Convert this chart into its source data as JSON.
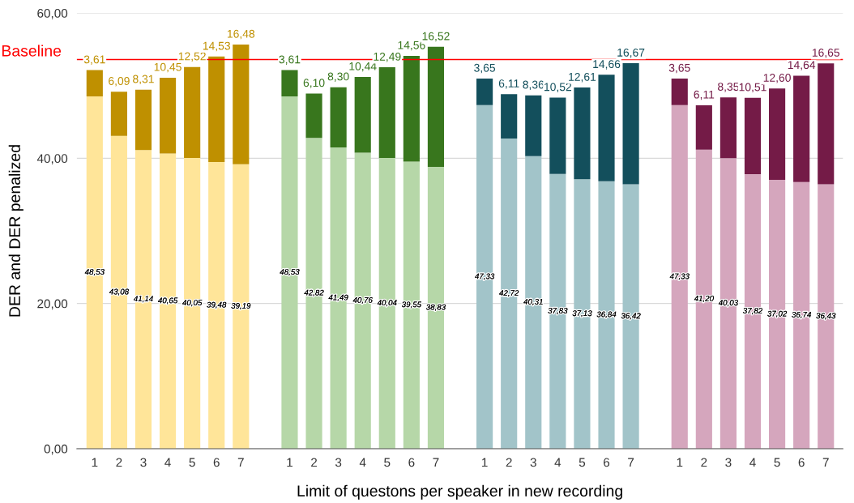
{
  "chart_data": {
    "type": "bar",
    "stacked": true,
    "xlabel": "Limit of questons per speaker in new recording",
    "ylabel": "DER and DER penalized",
    "categories": [
      "1",
      "2",
      "3",
      "4",
      "5",
      "6",
      "7",
      null,
      "1",
      "2",
      "3",
      "4",
      "5",
      "6",
      "7",
      null,
      "1",
      "2",
      "3",
      "4",
      "5",
      "6",
      "7",
      null,
      "1",
      "2",
      "3",
      "4",
      "5",
      "6",
      "7"
    ],
    "series": [
      {
        "color": "#ffe599",
        "values": [
          48.53,
          43.08,
          41.14,
          40.65,
          40.05,
          39.48,
          39.19,
          null,
          null,
          null,
          null,
          null,
          null,
          null,
          null,
          null,
          null,
          null,
          null,
          null,
          null,
          null,
          null,
          null,
          null,
          null,
          null,
          null,
          null,
          null,
          null
        ],
        "value_labels": [
          "48,53",
          "43,08",
          "41,14",
          "40,65",
          "40,05",
          "39,48",
          "39,19",
          null,
          null,
          null,
          null,
          null,
          null,
          null,
          null,
          null,
          null,
          null,
          null,
          null,
          null,
          null,
          null,
          null,
          null,
          null,
          null,
          null,
          null,
          null,
          null
        ]
      },
      {
        "color": "#b6d7a8",
        "values": [
          null,
          null,
          null,
          null,
          null,
          null,
          null,
          null,
          48.53,
          42.82,
          41.49,
          40.76,
          40.04,
          39.55,
          38.83,
          null,
          null,
          null,
          null,
          null,
          null,
          null,
          null,
          null,
          null,
          null,
          null,
          null,
          null,
          null,
          null
        ],
        "value_labels": [
          null,
          null,
          null,
          null,
          null,
          null,
          null,
          null,
          "48,53",
          "42,82",
          "41,49",
          "40,76",
          "40,04",
          "39,55",
          "38,83",
          null,
          null,
          null,
          null,
          null,
          null,
          null,
          null,
          null,
          null,
          null,
          null,
          null,
          null,
          null,
          null
        ]
      },
      {
        "color": "#a2c4c9",
        "values": [
          null,
          null,
          null,
          null,
          null,
          null,
          null,
          null,
          null,
          null,
          null,
          null,
          null,
          null,
          null,
          null,
          47.33,
          42.72,
          40.31,
          37.83,
          37.13,
          36.84,
          36.42,
          null,
          null,
          null,
          null,
          null,
          null,
          null,
          null
        ],
        "value_labels": [
          null,
          null,
          null,
          null,
          null,
          null,
          null,
          null,
          null,
          null,
          null,
          null,
          null,
          null,
          null,
          null,
          "47,33",
          "42,72",
          "40,31",
          "37,83",
          "37,13",
          "36,84",
          "36,42",
          null,
          null,
          null,
          null,
          null,
          null,
          null,
          null
        ]
      },
      {
        "color": "#d5a6bd",
        "values": [
          null,
          null,
          null,
          null,
          null,
          null,
          null,
          null,
          null,
          null,
          null,
          null,
          null,
          null,
          null,
          null,
          null,
          null,
          null,
          null,
          null,
          null,
          null,
          null,
          47.33,
          41.2,
          40.03,
          37.82,
          37.02,
          36.74,
          36.43
        ],
        "value_labels": [
          null,
          null,
          null,
          null,
          null,
          null,
          null,
          null,
          null,
          null,
          null,
          null,
          null,
          null,
          null,
          null,
          null,
          null,
          null,
          null,
          null,
          null,
          null,
          null,
          "47,33",
          "41,20",
          "40,03",
          "37,82",
          "37,02",
          "36,74",
          "36,43"
        ]
      },
      {
        "color": "#bf9000",
        "values": [
          3.61,
          6.09,
          8.31,
          10.45,
          12.52,
          14.53,
          16.48,
          null,
          null,
          null,
          null,
          null,
          null,
          null,
          null,
          null,
          null,
          null,
          null,
          null,
          null,
          null,
          null,
          null,
          null,
          null,
          null,
          null,
          null,
          null,
          null
        ],
        "value_labels": [
          "3,61",
          "6,09",
          "8,31",
          "10,45",
          "12,52",
          "14,53",
          "16,48",
          null,
          null,
          null,
          null,
          null,
          null,
          null,
          null,
          null,
          null,
          null,
          null,
          null,
          null,
          null,
          null,
          null,
          null,
          null,
          null,
          null,
          null,
          null,
          null
        ]
      },
      {
        "color": "#38761d",
        "values": [
          null,
          null,
          null,
          null,
          null,
          null,
          null,
          null,
          3.61,
          6.1,
          8.3,
          10.44,
          12.49,
          14.56,
          16.52,
          null,
          null,
          null,
          null,
          null,
          null,
          null,
          null,
          null,
          null,
          null,
          null,
          null,
          null,
          null,
          null
        ],
        "value_labels": [
          null,
          null,
          null,
          null,
          null,
          null,
          null,
          null,
          "3,61",
          "6,10",
          "8,30",
          "10,44",
          "12,49",
          "14,56",
          "16,52",
          null,
          null,
          null,
          null,
          null,
          null,
          null,
          null,
          null,
          null,
          null,
          null,
          null,
          null,
          null,
          null
        ]
      },
      {
        "color": "#134f5c",
        "values": [
          null,
          null,
          null,
          null,
          null,
          null,
          null,
          null,
          null,
          null,
          null,
          null,
          null,
          null,
          null,
          null,
          3.65,
          6.11,
          8.36,
          10.52,
          12.61,
          14.66,
          16.67,
          null,
          null,
          null,
          null,
          null,
          null,
          null,
          null
        ],
        "value_labels": [
          null,
          null,
          null,
          null,
          null,
          null,
          null,
          null,
          null,
          null,
          null,
          null,
          null,
          null,
          null,
          null,
          "3,65",
          "6,11",
          "8,36",
          "10,52",
          "12,61",
          "14,66",
          "16,67",
          null,
          null,
          null,
          null,
          null,
          null,
          null,
          null
        ]
      },
      {
        "color": "#741b47",
        "values": [
          null,
          null,
          null,
          null,
          null,
          null,
          null,
          null,
          null,
          null,
          null,
          null,
          null,
          null,
          null,
          null,
          null,
          null,
          null,
          null,
          null,
          null,
          null,
          null,
          3.65,
          6.11,
          8.35,
          10.51,
          12.6,
          14.64,
          16.65
        ],
        "value_labels": [
          null,
          null,
          null,
          null,
          null,
          null,
          null,
          null,
          null,
          null,
          null,
          null,
          null,
          null,
          null,
          null,
          null,
          null,
          null,
          null,
          null,
          null,
          null,
          null,
          "3,65",
          "6,11",
          "8,35",
          "10,51",
          "12,60",
          "14,64",
          "16,65"
        ]
      }
    ],
    "ylim": [
      0,
      60
    ],
    "yticks": [
      {
        "value": 0,
        "label": "0,00"
      },
      {
        "value": 20,
        "label": "20,00"
      },
      {
        "value": 40,
        "label": "40,00"
      },
      {
        "value": 60,
        "label": "60,00"
      }
    ],
    "grid": "y",
    "ref_lines": [
      {
        "axis": "y",
        "value": 53.6,
        "label": "Baseline",
        "color": "#ff0000"
      }
    ]
  }
}
